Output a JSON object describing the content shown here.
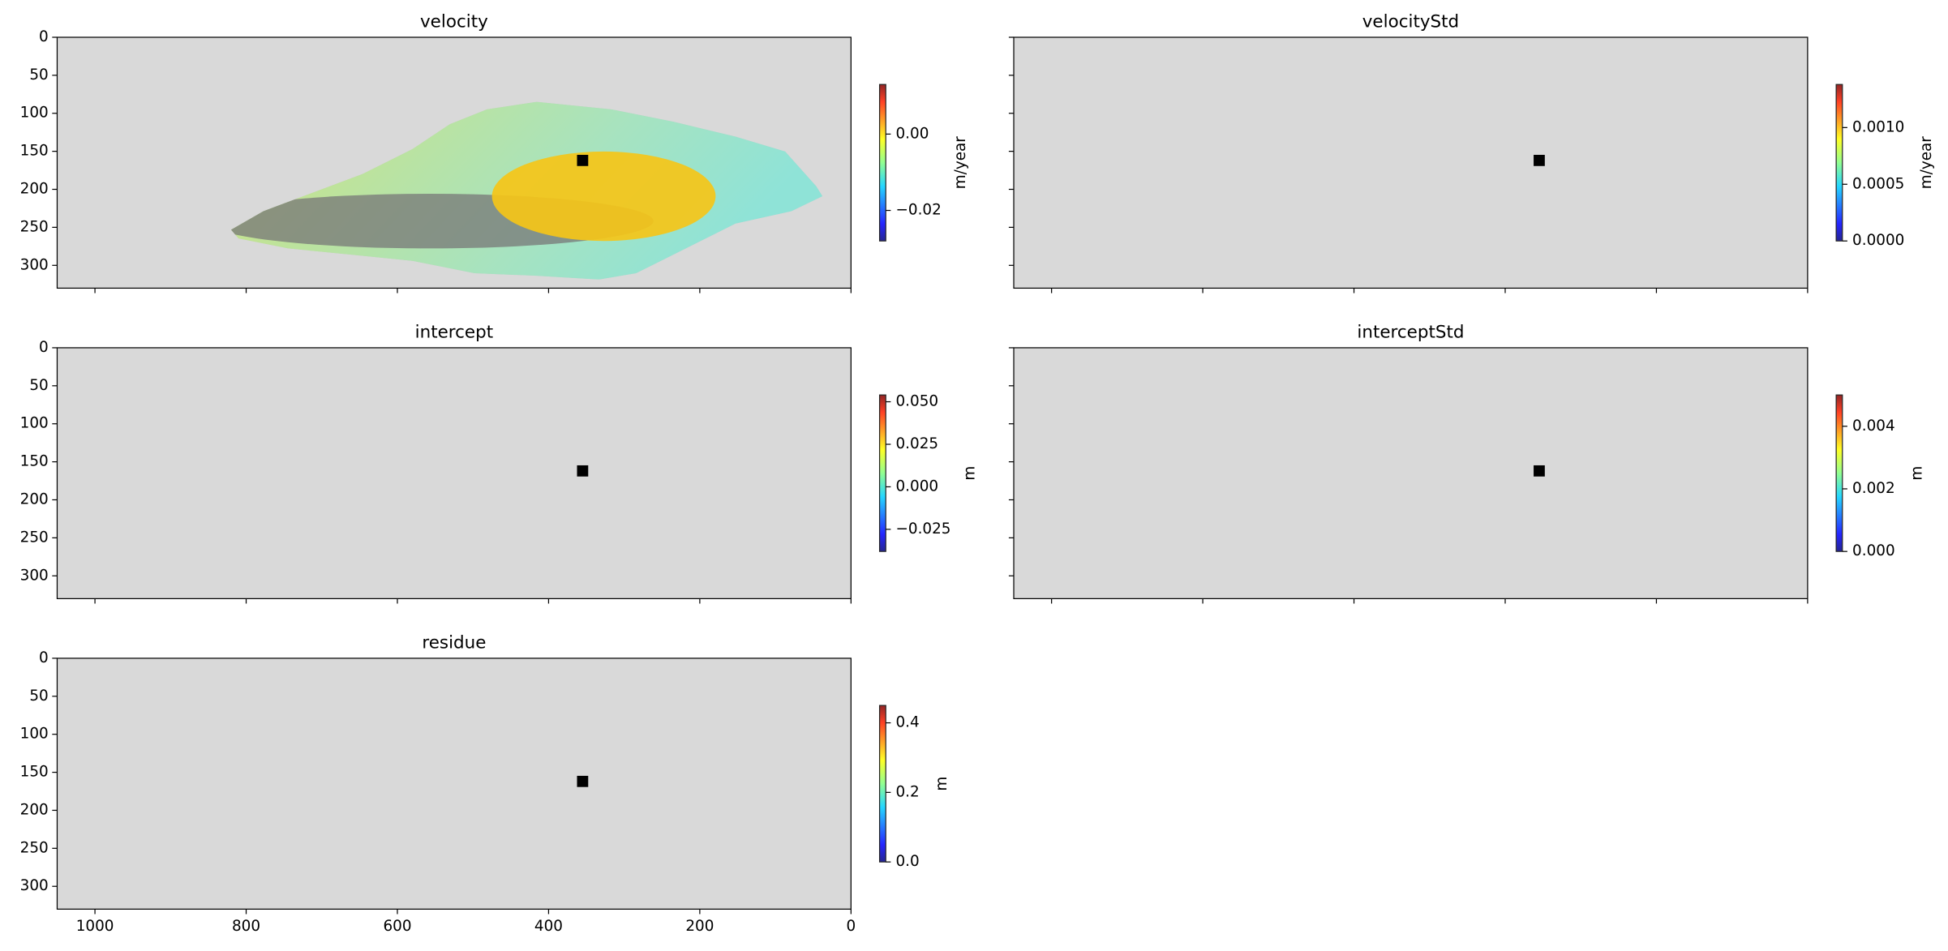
{
  "chart_data": [
    {
      "type": "image",
      "title": "velocity",
      "xlim": [
        1050,
        0
      ],
      "xticks": [
        1000,
        800,
        600,
        400,
        200,
        0
      ],
      "ylim": [
        330,
        0
      ],
      "yticks": [
        0,
        50,
        100,
        150,
        200,
        250,
        300
      ],
      "show_xticklabels": false,
      "show_yticklabels": true,
      "marker": {
        "x": 355,
        "y": 162
      },
      "colorbar": {
        "label": "m/year",
        "colormap": "jet",
        "lim": [
          -0.028,
          0.013
        ],
        "ticks": [
          {
            "value": 0,
            "label": "0.00"
          },
          {
            "value": -0.02,
            "label": "−0.02"
          }
        ]
      }
    },
    {
      "type": "image",
      "title": "velocityStd",
      "xlim": [
        1050,
        0
      ],
      "xticks": [
        1000,
        800,
        600,
        400,
        200,
        0
      ],
      "ylim": [
        330,
        0
      ],
      "yticks": [
        0,
        50,
        100,
        150,
        200,
        250,
        300
      ],
      "show_xticklabels": false,
      "show_yticklabels": false,
      "marker": {
        "x": 355,
        "y": 162
      },
      "colorbar": {
        "label": "m/year",
        "colormap": "jet",
        "lim": [
          0,
          0.00138
        ],
        "ticks": [
          {
            "value": 0,
            "label": "0.0000"
          },
          {
            "value": 0.0005,
            "label": "0.0005"
          },
          {
            "value": 0.001,
            "label": "0.0010"
          }
        ]
      }
    },
    {
      "type": "image",
      "title": "intercept",
      "xlim": [
        1050,
        0
      ],
      "xticks": [
        1000,
        800,
        600,
        400,
        200,
        0
      ],
      "ylim": [
        330,
        0
      ],
      "yticks": [
        0,
        50,
        100,
        150,
        200,
        250,
        300
      ],
      "show_xticklabels": false,
      "show_yticklabels": true,
      "marker": {
        "x": 355,
        "y": 162
      },
      "colorbar": {
        "label": "m",
        "colormap": "jet",
        "lim": [
          -0.038,
          0.054
        ],
        "ticks": [
          {
            "value": 0.05,
            "label": "0.050"
          },
          {
            "value": 0.025,
            "label": "0.025"
          },
          {
            "value": 0,
            "label": "0.000"
          },
          {
            "value": -0.025,
            "label": "−0.025"
          }
        ]
      }
    },
    {
      "type": "image",
      "title": "interceptStd",
      "xlim": [
        1050,
        0
      ],
      "xticks": [
        1000,
        800,
        600,
        400,
        200,
        0
      ],
      "ylim": [
        330,
        0
      ],
      "yticks": [
        0,
        50,
        100,
        150,
        200,
        250,
        300
      ],
      "show_xticklabels": false,
      "show_yticklabels": false,
      "marker": {
        "x": 355,
        "y": 162
      },
      "colorbar": {
        "label": "m",
        "colormap": "jet",
        "lim": [
          0,
          0.005
        ],
        "ticks": [
          {
            "value": 0,
            "label": "0.000"
          },
          {
            "value": 0.002,
            "label": "0.002"
          },
          {
            "value": 0.004,
            "label": "0.004"
          }
        ]
      }
    },
    {
      "type": "image",
      "title": "residue",
      "xlim": [
        1050,
        0
      ],
      "xticks": [
        1000,
        800,
        600,
        400,
        200,
        0
      ],
      "ylim": [
        330,
        0
      ],
      "yticks": [
        0,
        50,
        100,
        150,
        200,
        250,
        300
      ],
      "show_xticklabels": true,
      "show_yticklabels": true,
      "marker": {
        "x": 355,
        "y": 162
      },
      "colorbar": {
        "label": "m",
        "colormap": "jet",
        "lim": [
          0,
          0.45
        ],
        "ticks": [
          {
            "value": 0,
            "label": "0.0"
          },
          0.2,
          0.4
        ]
      }
    }
  ]
}
